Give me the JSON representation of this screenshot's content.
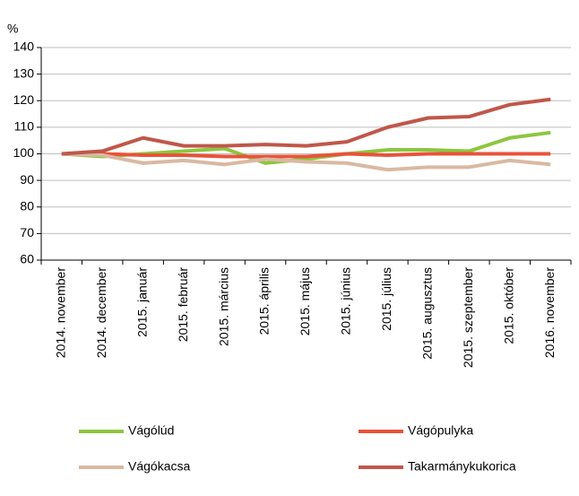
{
  "chart_data": {
    "type": "line",
    "y_label": "%",
    "categories": [
      "2014. november",
      "2014. december",
      "2015. január",
      "2015. február",
      "2015. március",
      "2015. április",
      "2015. május",
      "2015. június",
      "2015. július",
      "2015. augusztus",
      "2015. szeptember",
      "2015. október",
      "2016. november"
    ],
    "series": [
      {
        "name": "Vágólúd",
        "color": "#8dc63f",
        "values": [
          100,
          99,
          100,
          101,
          102,
          96.5,
          98,
          100,
          101.5,
          101.5,
          101,
          106,
          108
        ]
      },
      {
        "name": "Vágópulyka",
        "color": "#e8533a",
        "values": [
          100,
          100,
          99.5,
          99.5,
          99,
          99,
          99,
          100,
          99.5,
          100,
          100,
          100,
          100
        ]
      },
      {
        "name": "Vágókacsa",
        "color": "#d9b9a2",
        "values": [
          100,
          99.5,
          96.5,
          97.5,
          96,
          98,
          97,
          96.5,
          94,
          95,
          95,
          97.5,
          96
        ]
      },
      {
        "name": "Takarmánykukorica",
        "color": "#c0574a",
        "values": [
          100,
          101,
          106,
          103,
          103,
          103.5,
          103,
          104.5,
          110,
          113.5,
          114,
          118.5,
          120.5
        ]
      }
    ],
    "ylim": [
      60,
      140
    ],
    "yticks": [
      60,
      70,
      80,
      90,
      100,
      110,
      120,
      130,
      140
    ],
    "grid": true
  }
}
